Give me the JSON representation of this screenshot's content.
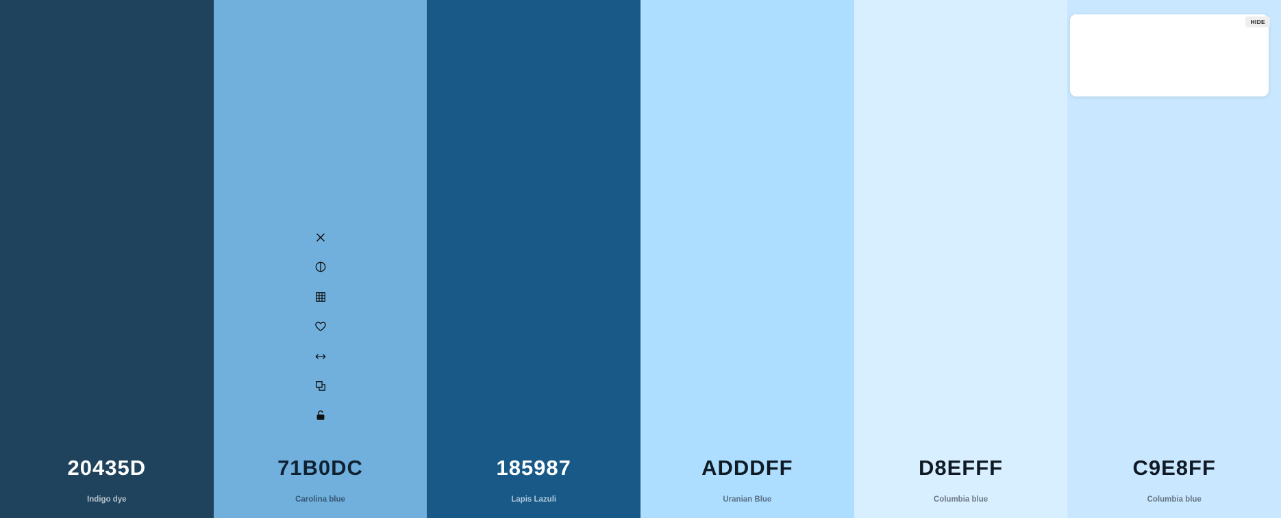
{
  "palette": {
    "swatches": [
      {
        "hex": "20435D",
        "name": "Indigo dye",
        "bg": "#20435D",
        "hex_color": "#FFFFFF",
        "name_color": "#B5C2CD"
      },
      {
        "hex": "71B0DC",
        "name": "Carolina blue",
        "bg": "#71B0DC",
        "hex_color": "#0F2233",
        "name_color": "#355673"
      },
      {
        "hex": "185987",
        "name": "Lapis Lazuli",
        "bg": "#185987",
        "hex_color": "#FFFFFF",
        "name_color": "#AFC7DA"
      },
      {
        "hex": "ADDDFF",
        "name": "Uranian Blue",
        "bg": "#ADDDFF",
        "hex_color": "#0F1A24",
        "name_color": "#5B7185"
      },
      {
        "hex": "D8EFFF",
        "name": "Columbia blue",
        "bg": "#D8EFFF",
        "hex_color": "#0F1A24",
        "name_color": "#6B7785"
      },
      {
        "hex": "C9E8FF",
        "name": "Columbia blue",
        "bg": "#C9E8FF",
        "hex_color": "#0F1A24",
        "name_color": "#647485"
      }
    ]
  },
  "tools": {
    "icons": [
      "close-icon",
      "contrast-icon",
      "grid-icon",
      "heart-icon",
      "drag-horizontal-icon",
      "copy-icon",
      "unlock-icon"
    ],
    "icon_color": "#111111"
  },
  "popup": {
    "hide_label": "HIDE"
  }
}
